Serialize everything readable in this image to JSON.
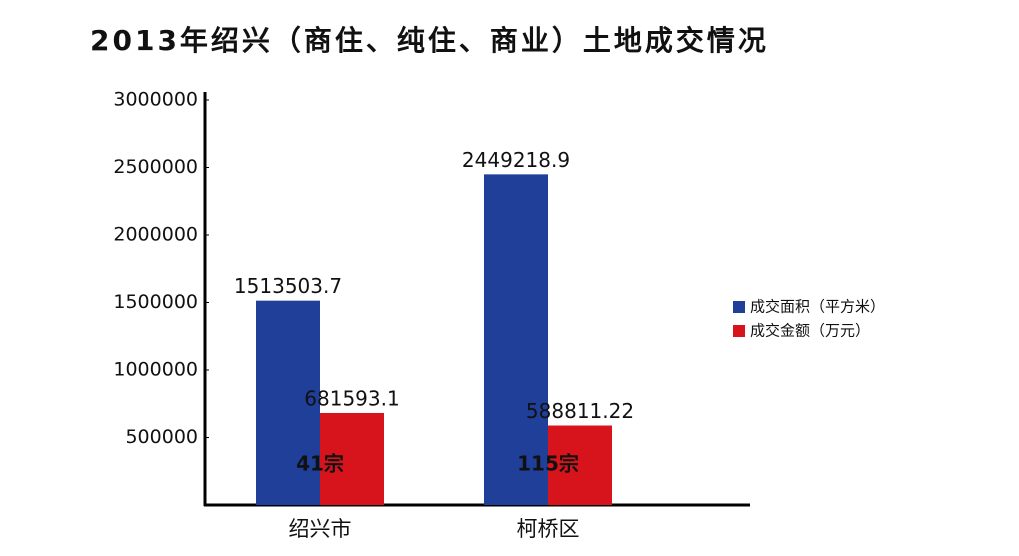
{
  "chart_data": {
    "type": "bar",
    "title": "2013年绍兴（商住、纯住、商业）土地成交情况",
    "categories": [
      "绍兴市",
      "柯桥区"
    ],
    "series": [
      {
        "name": "成交面积（平方米）",
        "color": "#1f3f99",
        "values": [
          1513503.7,
          2449218.9
        ]
      },
      {
        "name": "成交金额（万元）",
        "color": "#d7141b",
        "values": [
          681593.1,
          588811.22
        ]
      }
    ],
    "annotations": [
      "41宗",
      "115宗"
    ],
    "ylim": [
      0,
      3000000
    ],
    "yticks": [
      500000,
      1000000,
      1500000,
      2000000,
      2500000,
      3000000
    ],
    "grid": false,
    "legend": "right"
  }
}
